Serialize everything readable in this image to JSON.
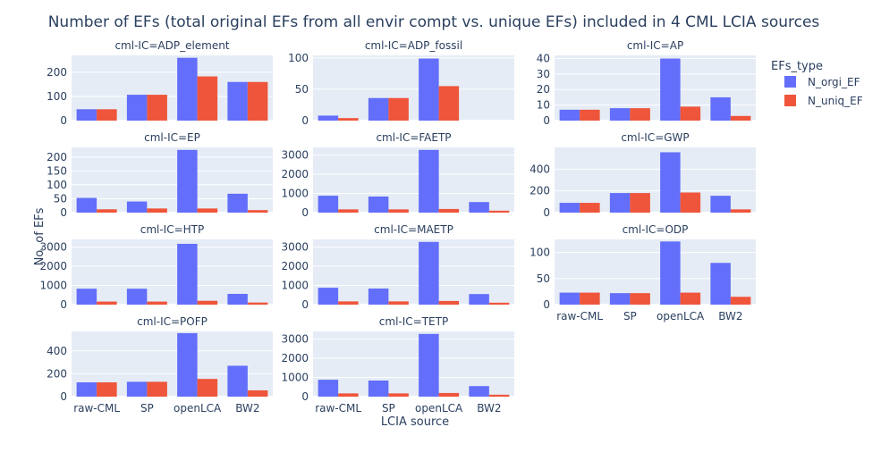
{
  "chart_data": {
    "type": "bar",
    "title": "Number of EFs (total original EFs from all envir compt vs. unique EFs) included in 4 CML LCIA sources",
    "xlabel": "LCIA source",
    "ylabel": "No. of EFs",
    "categories": [
      "raw-CML",
      "SP",
      "openLCA",
      "BW2"
    ],
    "legend": {
      "title": "EFs_type",
      "placement": "top-right",
      "items": [
        {
          "name": "N_orgi_EF",
          "color": "#636efa"
        },
        {
          "name": "N_uniq_EF",
          "color": "#ef553b"
        }
      ]
    },
    "grid": true,
    "panels": [
      {
        "title": "cml-IC=ADP_element",
        "ylim": [
          0,
          270
        ],
        "ticks": [
          0,
          100,
          200
        ],
        "tick_labels": [
          "0",
          "100",
          "200"
        ],
        "series": [
          {
            "name": "N_orgi_EF",
            "values": [
              47,
              107,
              260,
              160
            ]
          },
          {
            "name": "N_uniq_EF",
            "values": [
              47,
              107,
              183,
              160
            ]
          }
        ]
      },
      {
        "title": "cml-IC=ADP_fossil",
        "ylim": [
          0,
          104
        ],
        "ticks": [
          0,
          50,
          100
        ],
        "tick_labels": [
          "0",
          "50",
          "100"
        ],
        "series": [
          {
            "name": "N_orgi_EF",
            "values": [
              8,
              36,
              99,
              0
            ]
          },
          {
            "name": "N_uniq_EF",
            "values": [
              4,
              36,
              55,
              0
            ]
          }
        ]
      },
      {
        "title": "cml-IC=AP",
        "ylim": [
          0,
          42
        ],
        "ticks": [
          0,
          10,
          20,
          30,
          40
        ],
        "tick_labels": [
          "0",
          "10",
          "20",
          "30",
          "40"
        ],
        "series": [
          {
            "name": "N_orgi_EF",
            "values": [
              7,
              8,
              40,
              15
            ]
          },
          {
            "name": "N_uniq_EF",
            "values": [
              7,
              8,
              9,
              3
            ]
          }
        ]
      },
      {
        "title": "cml-IC=EP",
        "ylim": [
          0,
          235
        ],
        "ticks": [
          0,
          50,
          100,
          150,
          200
        ],
        "tick_labels": [
          "0",
          "50",
          "100",
          "150",
          "200"
        ],
        "series": [
          {
            "name": "N_orgi_EF",
            "values": [
              53,
              40,
              226,
              68
            ]
          },
          {
            "name": "N_uniq_EF",
            "values": [
              12,
              15,
              15,
              9
            ]
          }
        ]
      },
      {
        "title": "cml-IC=FAETP",
        "ylim": [
          0,
          3400
        ],
        "ticks": [
          0,
          1000,
          2000,
          3000
        ],
        "tick_labels": [
          "0",
          "1000",
          "2000",
          "3000"
        ],
        "series": [
          {
            "name": "N_orgi_EF",
            "values": [
              880,
              840,
              3270,
              550
            ]
          },
          {
            "name": "N_uniq_EF",
            "values": [
              170,
              170,
              190,
              100
            ]
          }
        ]
      },
      {
        "title": "cml-IC=GWP",
        "ylim": [
          0,
          600
        ],
        "ticks": [
          0,
          200,
          400
        ],
        "tick_labels": [
          "0",
          "200",
          "400"
        ],
        "series": [
          {
            "name": "N_orgi_EF",
            "values": [
              90,
              180,
              555,
              155
            ]
          },
          {
            "name": "N_uniq_EF",
            "values": [
              90,
              180,
              185,
              30
            ]
          }
        ]
      },
      {
        "title": "cml-IC=HTP",
        "ylim": [
          0,
          3400
        ],
        "ticks": [
          0,
          1000,
          2000,
          3000
        ],
        "tick_labels": [
          "0",
          "1000",
          "2000",
          "3000"
        ],
        "series": [
          {
            "name": "N_orgi_EF",
            "values": [
              830,
              830,
              3170,
              560
            ]
          },
          {
            "name": "N_uniq_EF",
            "values": [
              160,
              160,
              200,
              110
            ]
          }
        ]
      },
      {
        "title": "cml-IC=MAETP",
        "ylim": [
          0,
          3400
        ],
        "ticks": [
          0,
          1000,
          2000,
          3000
        ],
        "tick_labels": [
          "0",
          "1000",
          "2000",
          "3000"
        ],
        "series": [
          {
            "name": "N_orgi_EF",
            "values": [
              880,
              840,
              3270,
              550
            ]
          },
          {
            "name": "N_uniq_EF",
            "values": [
              170,
              170,
              190,
              100
            ]
          }
        ]
      },
      {
        "title": "cml-IC=ODP",
        "ylim": [
          0,
          125
        ],
        "ticks": [
          0,
          50,
          100
        ],
        "tick_labels": [
          "0",
          "50",
          "100"
        ],
        "series": [
          {
            "name": "N_orgi_EF",
            "values": [
              23,
              22,
              121,
              80
            ]
          },
          {
            "name": "N_uniq_EF",
            "values": [
              23,
              22,
              23,
              15
            ]
          }
        ]
      },
      {
        "title": "cml-IC=POFP",
        "ylim": [
          0,
          570
        ],
        "ticks": [
          0,
          200,
          400
        ],
        "tick_labels": [
          "0",
          "200",
          "400"
        ],
        "series": [
          {
            "name": "N_orgi_EF",
            "values": [
              125,
              130,
              555,
              270
            ]
          },
          {
            "name": "N_uniq_EF",
            "values": [
              125,
              130,
              155,
              55
            ]
          }
        ]
      },
      {
        "title": "cml-IC=TETP",
        "ylim": [
          0,
          3400
        ],
        "ticks": [
          0,
          1000,
          2000,
          3000
        ],
        "tick_labels": [
          "0",
          "1000",
          "2000",
          "3000"
        ],
        "series": [
          {
            "name": "N_orgi_EF",
            "values": [
              880,
              840,
              3270,
              550
            ]
          },
          {
            "name": "N_uniq_EF",
            "values": [
              170,
              170,
              190,
              100
            ]
          }
        ]
      }
    ]
  }
}
